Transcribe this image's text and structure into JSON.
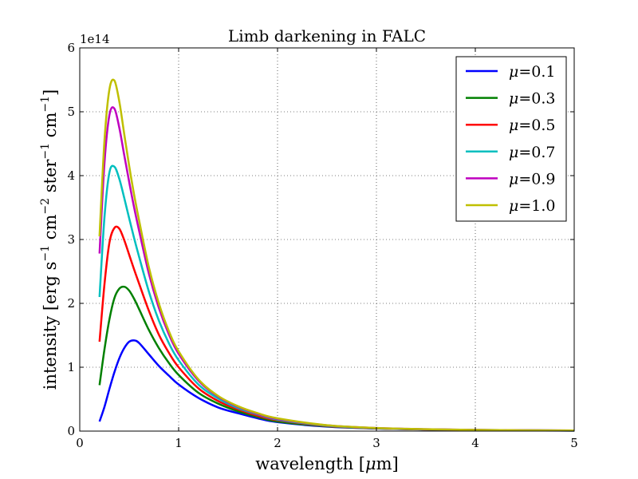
{
  "chart_data": {
    "type": "line",
    "title": "Limb darkening in FALC",
    "xlabel_prefix": "wavelength [",
    "xlabel_mu": "μ",
    "xlabel_suffix": "m]",
    "ylabel_main": "intensity [erg s",
    "ylabel_sup1": "−1",
    "ylabel_mid1": " cm",
    "ylabel_sup2": "−2",
    "ylabel_mid2": " ster",
    "ylabel_sup3": "−1",
    "ylabel_mid3": " cm",
    "ylabel_sup4": "−1",
    "ylabel_end": "]",
    "y_multiplier": "1e14",
    "xlim": [
      0,
      5
    ],
    "ylim": [
      0,
      6
    ],
    "xticks": [
      "0",
      "1",
      "2",
      "3",
      "4",
      "5"
    ],
    "yticks": [
      "0",
      "1",
      "2",
      "3",
      "4",
      "5",
      "6"
    ],
    "grid": true,
    "legend_position": "top-right",
    "x": [
      0.2,
      0.25,
      0.3,
      0.35,
      0.4,
      0.45,
      0.5,
      0.55,
      0.6,
      0.7,
      0.8,
      0.9,
      1.0,
      1.2,
      1.4,
      1.6,
      1.8,
      2.0,
      2.5,
      3.0,
      3.5,
      4.0,
      4.5,
      5.0
    ],
    "series": [
      {
        "name": "μ=0.1",
        "label_mu": "μ",
        "label_value": "=0.1",
        "color": "#0000ff",
        "values": [
          0.15,
          0.38,
          0.66,
          0.92,
          1.14,
          1.3,
          1.4,
          1.42,
          1.38,
          1.2,
          1.02,
          0.87,
          0.73,
          0.52,
          0.37,
          0.28,
          0.2,
          0.14,
          0.07,
          0.04,
          0.025,
          0.016,
          0.011,
          0.008
        ]
      },
      {
        "name": "μ=0.3",
        "label_mu": "μ",
        "label_value": "=0.3",
        "color": "#008000",
        "values": [
          0.72,
          1.28,
          1.75,
          2.08,
          2.23,
          2.26,
          2.2,
          2.07,
          1.91,
          1.58,
          1.3,
          1.07,
          0.88,
          0.6,
          0.43,
          0.31,
          0.22,
          0.15,
          0.075,
          0.042,
          0.026,
          0.017,
          0.012,
          0.008
        ]
      },
      {
        "name": "μ=0.5",
        "label_mu": "μ",
        "label_value": "=0.5",
        "color": "#ff0000",
        "values": [
          1.4,
          2.3,
          2.95,
          3.18,
          3.17,
          2.99,
          2.76,
          2.53,
          2.31,
          1.88,
          1.51,
          1.23,
          1.0,
          0.67,
          0.47,
          0.34,
          0.24,
          0.17,
          0.08,
          0.044,
          0.027,
          0.018,
          0.012,
          0.009
        ]
      },
      {
        "name": "μ=0.7",
        "label_mu": "μ",
        "label_value": "=0.7",
        "color": "#00bfbf",
        "values": [
          2.1,
          3.35,
          4.05,
          4.14,
          3.95,
          3.65,
          3.33,
          3.02,
          2.73,
          2.18,
          1.73,
          1.38,
          1.11,
          0.73,
          0.51,
          0.36,
          0.26,
          0.18,
          0.085,
          0.046,
          0.028,
          0.018,
          0.013,
          0.009
        ]
      },
      {
        "name": "μ=0.9",
        "label_mu": "μ",
        "label_value": "=0.9",
        "color": "#bf00bf",
        "values": [
          2.78,
          4.2,
          4.95,
          5.05,
          4.75,
          4.32,
          3.9,
          3.5,
          3.14,
          2.46,
          1.93,
          1.52,
          1.21,
          0.79,
          0.54,
          0.38,
          0.27,
          0.19,
          0.09,
          0.048,
          0.029,
          0.019,
          0.013,
          0.009
        ]
      },
      {
        "name": "μ=1.0",
        "label_mu": "μ",
        "label_value": "=1.0",
        "color": "#bfbf00",
        "values": [
          3.05,
          4.55,
          5.35,
          5.49,
          5.16,
          4.65,
          4.15,
          3.7,
          3.3,
          2.56,
          2.0,
          1.57,
          1.25,
          0.81,
          0.55,
          0.39,
          0.28,
          0.2,
          0.092,
          0.049,
          0.03,
          0.019,
          0.013,
          0.009
        ]
      }
    ]
  }
}
